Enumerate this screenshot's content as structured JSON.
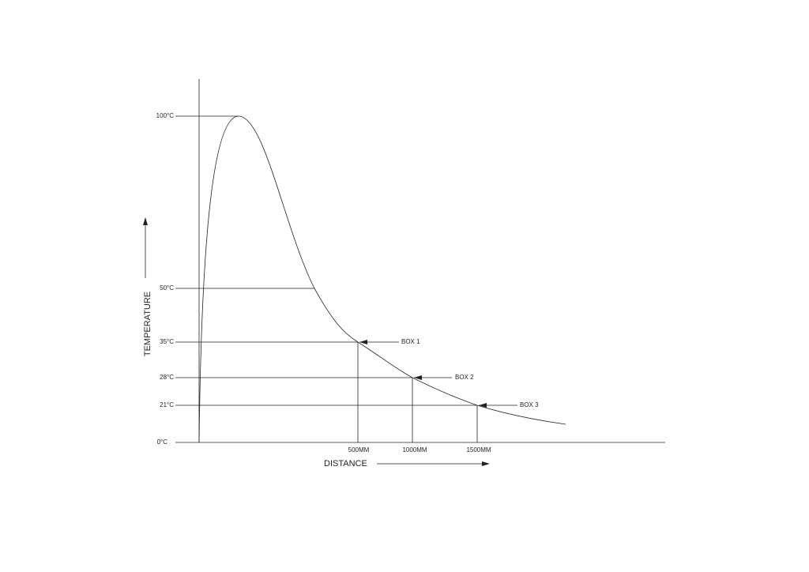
{
  "y_axis": {
    "label": "TEMPERATURE",
    "ticks": [
      "100°C",
      "50°C",
      "35°C",
      "28°C",
      "21°C",
      "0°C"
    ]
  },
  "x_axis": {
    "label": "DISTANCE",
    "ticks": [
      "500MM",
      "1000MM",
      "1500MM"
    ]
  },
  "callouts": [
    "BOX 1",
    "BOX 2",
    "BOX 3"
  ]
}
